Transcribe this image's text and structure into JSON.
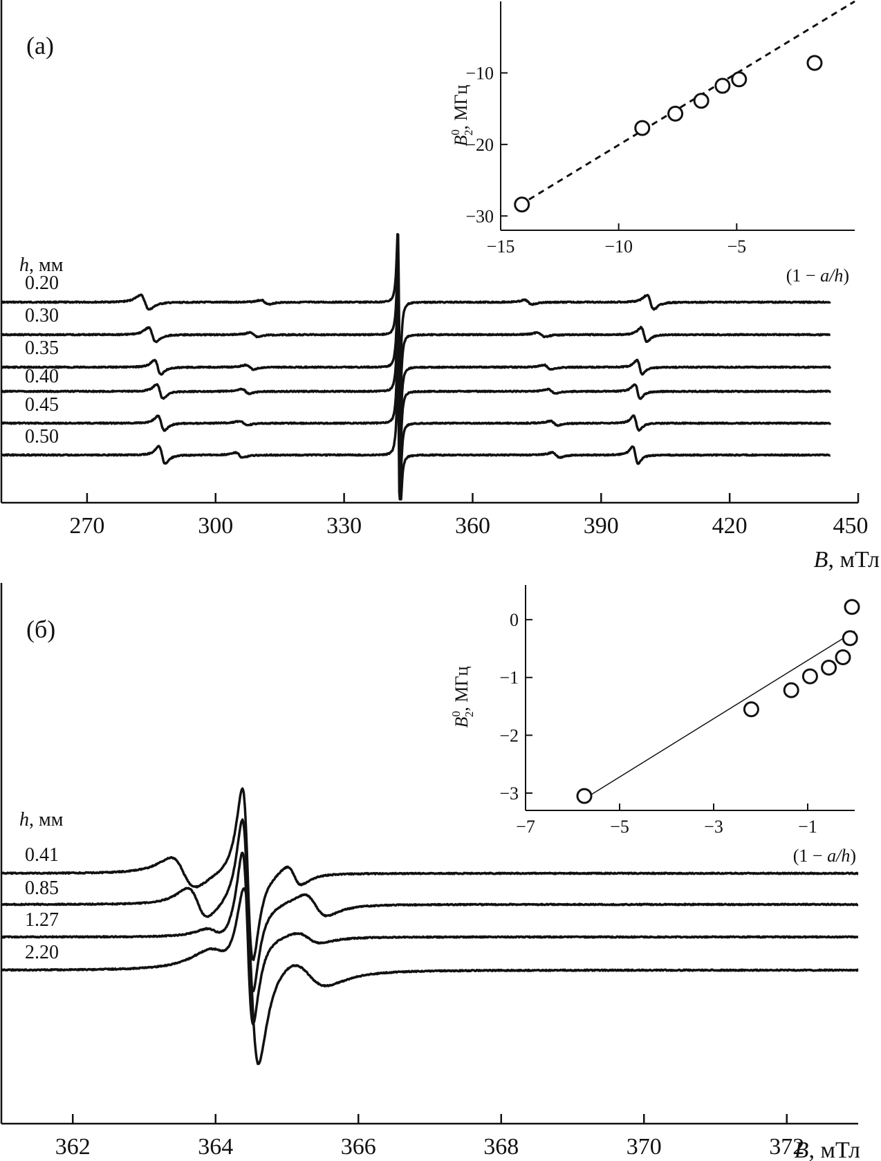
{
  "chart_data": [
    {
      "panel": "a",
      "panel_label": "(а)",
      "type": "line",
      "xlabel_var": "B",
      "xlabel_unit": ", мТл",
      "xlim": [
        250,
        450
      ],
      "xticks": [
        270,
        300,
        330,
        360,
        390,
        420,
        450
      ],
      "legend_title_var": "h",
      "legend_title_unit": ", мм",
      "series": [
        {
          "name": "0.20",
          "baseline": 0.0,
          "peaks": [
            {
              "center": 283.5,
              "width": 1.8,
              "amp": 1.0
            },
            {
              "center": 311.5,
              "width": 1.5,
              "amp": 0.3
            },
            {
              "center": 342.8,
              "width": 0.45,
              "amp": 10.0
            },
            {
              "center": 373.0,
              "width": 1.5,
              "amp": 0.3
            },
            {
              "center": 401.5,
              "width": 1.4,
              "amp": 1.0
            }
          ]
        },
        {
          "name": "0.30",
          "baseline": 1.0,
          "peaks": [
            {
              "center": 285.2,
              "width": 1.5,
              "amp": 1.0
            },
            {
              "center": 309.0,
              "width": 1.5,
              "amp": 0.3
            },
            {
              "center": 342.8,
              "width": 0.45,
              "amp": 10.0
            },
            {
              "center": 376.0,
              "width": 1.5,
              "amp": 0.3
            },
            {
              "center": 400.0,
              "width": 1.2,
              "amp": 1.0
            }
          ]
        },
        {
          "name": "0.35",
          "baseline": 2.0,
          "peaks": [
            {
              "center": 286.5,
              "width": 1.3,
              "amp": 1.0
            },
            {
              "center": 308.0,
              "width": 1.5,
              "amp": 0.3
            },
            {
              "center": 342.8,
              "width": 0.45,
              "amp": 10.0
            },
            {
              "center": 377.5,
              "width": 1.5,
              "amp": 0.3
            },
            {
              "center": 399.0,
              "width": 1.1,
              "amp": 1.0
            }
          ]
        },
        {
          "name": "0.40",
          "baseline": 3.0,
          "peaks": [
            {
              "center": 287.0,
              "width": 1.3,
              "amp": 1.0
            },
            {
              "center": 307.0,
              "width": 1.5,
              "amp": 0.3
            },
            {
              "center": 342.8,
              "width": 0.45,
              "amp": 10.0
            },
            {
              "center": 378.5,
              "width": 1.5,
              "amp": 0.3
            },
            {
              "center": 398.5,
              "width": 1.1,
              "amp": 1.0
            }
          ]
        },
        {
          "name": "0.45",
          "baseline": 4.0,
          "peaks": [
            {
              "center": 287.3,
              "width": 1.3,
              "amp": 1.0
            },
            {
              "center": 306.5,
              "width": 1.5,
              "amp": 0.3
            },
            {
              "center": 342.8,
              "width": 0.45,
              "amp": 10.0
            },
            {
              "center": 379.0,
              "width": 1.5,
              "amp": 0.3
            },
            {
              "center": 398.2,
              "width": 1.1,
              "amp": 1.0
            }
          ]
        },
        {
          "name": "0.50",
          "baseline": 5.0,
          "peaks": [
            {
              "center": 287.5,
              "width": 1.3,
              "amp": 1.2
            },
            {
              "center": 305.5,
              "width": 1.5,
              "amp": 0.35
            },
            {
              "center": 342.8,
              "width": 0.45,
              "amp": 10.0
            },
            {
              "center": 379.5,
              "width": 1.5,
              "amp": 0.35
            },
            {
              "center": 398.0,
              "width": 1.1,
              "amp": 1.2
            }
          ]
        }
      ],
      "inset": {
        "type": "scatter",
        "xlabel_pre": "(1 − ",
        "xlabel_var": "a/h",
        "xlabel_post": ")",
        "ylabel_var": "B",
        "ylabel_sub": "2",
        "ylabel_sup": "0",
        "ylabel_unit": ", МГц",
        "xlim": [
          -15,
          0
        ],
        "ylim": [
          -32,
          0
        ],
        "xticks": [
          -15,
          -10,
          -5
        ],
        "yticks": [
          -30,
          -20,
          -10
        ],
        "points": [
          [
            -14.1,
            -28.4
          ],
          [
            -9.0,
            -17.7
          ],
          [
            -7.6,
            -15.7
          ],
          [
            -6.5,
            -13.9
          ],
          [
            -5.6,
            -11.8
          ],
          [
            -4.9,
            -10.9
          ],
          [
            -1.7,
            -8.6
          ]
        ],
        "fit": {
          "style": "dashed",
          "x": [
            -13.8,
            0.0
          ],
          "y": [
            -27.7,
            0.0
          ]
        }
      }
    },
    {
      "panel": "b",
      "panel_label": "(б)",
      "type": "line",
      "xlabel_var": "B",
      "xlabel_unit": ", мТл",
      "xlim": [
        361,
        373
      ],
      "xticks": [
        362,
        364,
        366,
        368,
        370,
        372
      ],
      "legend_title_var": "h",
      "legend_title_unit": ", мм",
      "series": [
        {
          "name": "0.41",
          "baseline": 0.0,
          "peaks": [
            {
              "center": 363.55,
              "width": 0.3,
              "amp": 0.28
            },
            {
              "center": 364.45,
              "width": 0.13,
              "amp": 1.6
            },
            {
              "center": 365.1,
              "width": 0.18,
              "amp": 0.18
            }
          ]
        },
        {
          "name": "0.85",
          "baseline": 1.0,
          "peaks": [
            {
              "center": 363.75,
              "width": 0.25,
              "amp": 0.28
            },
            {
              "center": 364.45,
              "width": 0.13,
              "amp": 1.6
            },
            {
              "center": 365.4,
              "width": 0.28,
              "amp": 0.2
            }
          ]
        },
        {
          "name": "1.27",
          "baseline": 2.0,
          "peaks": [
            {
              "center": 364.0,
              "width": 0.25,
              "amp": 0.1
            },
            {
              "center": 364.45,
              "width": 0.13,
              "amp": 1.6
            },
            {
              "center": 365.3,
              "width": 0.3,
              "amp": 0.1
            }
          ]
        },
        {
          "name": "2.20",
          "baseline": 3.0,
          "peaks": [
            {
              "center": 364.5,
              "width": 0.18,
              "amp": 1.7
            },
            {
              "center": 364.1,
              "width": 0.4,
              "amp": 0.25
            },
            {
              "center": 365.3,
              "width": 0.45,
              "amp": 0.25
            }
          ]
        }
      ],
      "inset": {
        "type": "scatter",
        "xlabel_pre": "(1 − ",
        "xlabel_var": "a/h",
        "xlabel_post": ")",
        "ylabel_var": "B",
        "ylabel_sub": "2",
        "ylabel_sup": "0",
        "ylabel_unit": ", МГц",
        "xlim": [
          -7,
          0
        ],
        "ylim": [
          -3.3,
          0.6
        ],
        "xticks": [
          -7,
          -5,
          -3,
          -1
        ],
        "yticks": [
          -3,
          -2,
          -1,
          0
        ],
        "points": [
          [
            -5.75,
            -3.05
          ],
          [
            -2.2,
            -1.55
          ],
          [
            -1.35,
            -1.22
          ],
          [
            -0.95,
            -0.98
          ],
          [
            -0.55,
            -0.83
          ],
          [
            -0.25,
            -0.65
          ],
          [
            -0.1,
            -0.32
          ],
          [
            0.0,
            0.22
          ]
        ],
        "fit": {
          "style": "solid",
          "x": [
            -5.75,
            0.0
          ],
          "y": [
            -3.1,
            -0.2
          ]
        }
      }
    }
  ]
}
